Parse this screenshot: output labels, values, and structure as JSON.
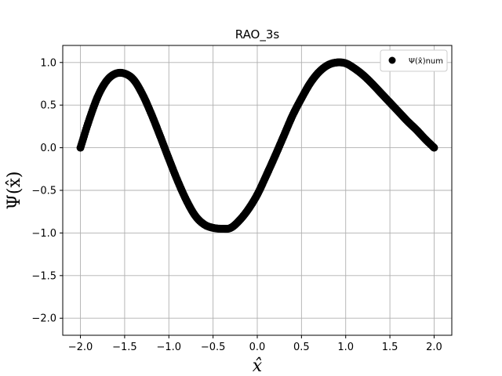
{
  "chart_data": {
    "type": "scatter",
    "title": "RAO_3s",
    "xlabel": "x̂",
    "ylabel": "Ψ(x̂)",
    "xlim": [
      -2.2,
      2.2
    ],
    "ylim": [
      -2.2,
      1.2
    ],
    "x_ticks": [
      -2.0,
      -1.5,
      -1.0,
      -0.5,
      0.0,
      0.5,
      1.0,
      1.5,
      2.0
    ],
    "x_tick_labels": [
      "−2.0",
      "−1.5",
      "−1.0",
      "−0.5",
      "0.0",
      "0.5",
      "1.0",
      "1.5",
      "2.0"
    ],
    "y_ticks": [
      -2.0,
      -1.5,
      -1.0,
      -0.5,
      0.0,
      0.5,
      1.0
    ],
    "y_tick_labels": [
      "−2.0",
      "−1.5",
      "−1.0",
      "−0.5",
      "0.0",
      "0.5",
      "1.0"
    ],
    "grid": true,
    "legend_position": "top-right",
    "marker_color": "#000000",
    "series": [
      {
        "name": "Ψ(x̂)num",
        "x": [
          -2.0,
          -1.9,
          -1.8,
          -1.7,
          -1.6,
          -1.5,
          -1.4,
          -1.3,
          -1.2,
          -1.1,
          -1.0,
          -0.9,
          -0.8,
          -0.7,
          -0.6,
          -0.5,
          -0.4,
          -0.3,
          -0.2,
          -0.1,
          0.0,
          0.1,
          0.2,
          0.3,
          0.4,
          0.5,
          0.6,
          0.7,
          0.8,
          0.9,
          1.0,
          1.1,
          1.2,
          1.3,
          1.4,
          1.5,
          1.6,
          1.7,
          1.8,
          1.9,
          2.0
        ],
        "y": [
          0.0,
          0.33,
          0.61,
          0.79,
          0.87,
          0.87,
          0.8,
          0.63,
          0.4,
          0.14,
          -0.13,
          -0.39,
          -0.62,
          -0.8,
          -0.9,
          -0.94,
          -0.95,
          -0.94,
          -0.85,
          -0.72,
          -0.55,
          -0.33,
          -0.1,
          0.14,
          0.38,
          0.58,
          0.76,
          0.89,
          0.97,
          1.0,
          0.99,
          0.93,
          0.85,
          0.75,
          0.64,
          0.53,
          0.42,
          0.31,
          0.21,
          0.1,
          0.0
        ]
      }
    ]
  }
}
